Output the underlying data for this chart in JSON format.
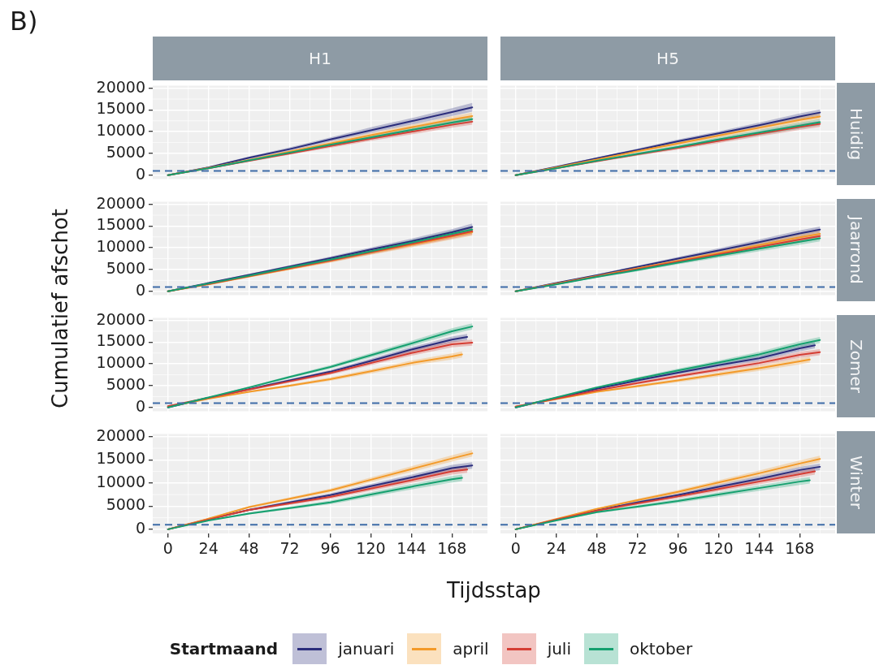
{
  "chart_data": [
    {
      "type": "line",
      "title": "H1",
      "ylabel": "Cumulatief afschot",
      "annotations": [
        "B)"
      ],
      "legend": "bottom",
      "legend_title": "Startmaand",
      "tick_labels": "y",
      "grid": true,
      "xlim": [
        -9,
        189
      ],
      "xticks": [
        0,
        24,
        48,
        72,
        96,
        120,
        144,
        168
      ],
      "ylim": [
        -900,
        20600
      ],
      "yticks": [
        0,
        5000,
        10000,
        15000,
        20000
      ],
      "ref_lines": [
        {
          "axis": "y",
          "value": 1000,
          "color": "#3e6ca8",
          "line_style": "dashed"
        }
      ],
      "x": [
        0,
        24,
        48,
        72,
        96,
        120,
        144,
        168,
        180
      ],
      "series": [
        {
          "name": "januari",
          "color": "#2b2d7c",
          "values": [
            0,
            1800,
            4000,
            6000,
            8200,
            10300,
            12400,
            14500,
            15600
          ],
          "lower": [
            0,
            1600,
            3700,
            5600,
            7700,
            9700,
            11600,
            13600,
            14600
          ],
          "upper": [
            0,
            2000,
            4300,
            6400,
            8700,
            11000,
            13100,
            15400,
            16600
          ]
        },
        {
          "name": "april",
          "color": "#f39a29",
          "values": [
            0,
            1700,
            3500,
            5400,
            7300,
            9200,
            11000,
            12800,
            13600
          ],
          "lower": [
            0,
            1600,
            3300,
            5100,
            6900,
            8700,
            10400,
            12100,
            12900
          ],
          "upper": [
            0,
            1800,
            3700,
            5700,
            7700,
            9700,
            11600,
            13500,
            14400
          ]
        },
        {
          "name": "juli",
          "color": "#d53e34",
          "values": [
            0,
            1600,
            3300,
            5000,
            6700,
            8400,
            10000,
            11600,
            12300
          ],
          "lower": [
            0,
            1500,
            3100,
            4700,
            6300,
            7900,
            9400,
            10900,
            11600
          ],
          "upper": [
            0,
            1700,
            3500,
            5300,
            7100,
            8900,
            10600,
            12300,
            13000
          ]
        },
        {
          "name": "oktober",
          "color": "#15a06f",
          "values": [
            0,
            1600,
            3400,
            5200,
            7000,
            8700,
            10400,
            12100,
            12900
          ],
          "lower": [
            0,
            1500,
            3200,
            4900,
            6600,
            8200,
            9800,
            11400,
            12200
          ],
          "upper": [
            0,
            1700,
            3600,
            5500,
            7400,
            9200,
            11000,
            12800,
            13600
          ]
        }
      ]
    },
    {
      "type": "line",
      "title": "H5",
      "y2label": "Huidig",
      "tick_labels": false,
      "grid": true,
      "xlim": [
        -9,
        189
      ],
      "xticks": [
        0,
        24,
        48,
        72,
        96,
        120,
        144,
        168
      ],
      "ylim": [
        -900,
        20600
      ],
      "yticks": [
        0,
        5000,
        10000,
        15000,
        20000
      ],
      "ref_lines": [
        {
          "axis": "y",
          "value": 1000,
          "color": "#3e6ca8",
          "line_style": "dashed"
        }
      ],
      "x": [
        0,
        24,
        48,
        72,
        96,
        120,
        144,
        168,
        180
      ],
      "series": [
        {
          "color": "#2b2d7c",
          "values": [
            0,
            1900,
            3900,
            5800,
            7800,
            9600,
            11500,
            13500,
            14400
          ],
          "lower": [
            0,
            1800,
            3700,
            5500,
            7400,
            9100,
            10900,
            12800,
            13700
          ],
          "upper": [
            0,
            2000,
            4100,
            6100,
            8200,
            10100,
            12100,
            14200,
            15100
          ]
        },
        {
          "color": "#f39a29",
          "values": [
            0,
            1800,
            3600,
            5500,
            7300,
            9100,
            10900,
            12700,
            13500
          ],
          "lower": [
            0,
            1700,
            3400,
            5200,
            6900,
            8600,
            10300,
            12000,
            12800
          ],
          "upper": [
            0,
            1900,
            3800,
            5800,
            7700,
            9600,
            11500,
            13400,
            14200
          ]
        },
        {
          "color": "#d53e34",
          "values": [
            0,
            1600,
            3200,
            4800,
            6300,
            7900,
            9500,
            11100,
            11800
          ],
          "lower": [
            0,
            1500,
            3000,
            4500,
            5900,
            7400,
            8900,
            10400,
            11100
          ],
          "upper": [
            0,
            1700,
            3400,
            5100,
            6700,
            8400,
            10100,
            11800,
            12500
          ]
        },
        {
          "color": "#15a06f",
          "values": [
            0,
            1600,
            3300,
            4900,
            6500,
            8200,
            9800,
            11400,
            12200
          ],
          "lower": [
            0,
            1500,
            3100,
            4600,
            6100,
            7700,
            9200,
            10700,
            11500
          ],
          "upper": [
            0,
            1700,
            3500,
            5200,
            6900,
            8700,
            10400,
            12100,
            12900
          ]
        }
      ]
    },
    {
      "type": "line",
      "tick_labels": "y",
      "grid": true,
      "xlim": [
        -9,
        189
      ],
      "xticks": [
        0,
        24,
        48,
        72,
        96,
        120,
        144,
        168
      ],
      "ylim": [
        -900,
        20600
      ],
      "yticks": [
        0,
        5000,
        10000,
        15000,
        20000
      ],
      "ref_lines": [
        {
          "axis": "y",
          "value": 1000,
          "color": "#3e6ca8",
          "line_style": "dashed"
        }
      ],
      "x": [
        0,
        24,
        48,
        72,
        96,
        120,
        144,
        168,
        180
      ],
      "series": [
        {
          "color": "#2b2d7c",
          "values": [
            0,
            1900,
            3800,
            5700,
            7600,
            9600,
            11500,
            13600,
            14800
          ],
          "lower": [
            0,
            1800,
            3600,
            5400,
            7200,
            9100,
            10900,
            12900,
            14000
          ],
          "upper": [
            0,
            2000,
            4000,
            6000,
            8000,
            10100,
            12100,
            14300,
            15600
          ]
        },
        {
          "color": "#f39a29",
          "values": [
            0,
            1600,
            3400,
            5200,
            7000,
            8900,
            10700,
            12600,
            13600
          ],
          "lower": [
            0,
            1500,
            3200,
            4900,
            6600,
            8400,
            10100,
            11900,
            12800
          ],
          "upper": [
            0,
            1700,
            3600,
            5500,
            7400,
            9400,
            11300,
            13300,
            14400
          ]
        },
        {
          "color": "#d53e34",
          "values": [
            0,
            1700,
            3500,
            5300,
            7100,
            9000,
            10900,
            12800,
            13800
          ],
          "lower": [
            0,
            1600,
            3300,
            5000,
            6700,
            8500,
            10300,
            12100,
            13000
          ],
          "upper": [
            0,
            1800,
            3700,
            5600,
            7500,
            9500,
            11500,
            13500,
            14600
          ]
        },
        {
          "color": "#15a06f",
          "values": [
            0,
            1800,
            3600,
            5500,
            7300,
            9200,
            11200,
            13200,
            14200
          ],
          "lower": [
            0,
            1700,
            3400,
            5200,
            6900,
            8700,
            10600,
            12500,
            13400
          ],
          "upper": [
            0,
            1900,
            3800,
            5800,
            7700,
            9700,
            11800,
            13900,
            15000
          ]
        }
      ]
    },
    {
      "type": "line",
      "y2label": "Jaarrond",
      "tick_labels": false,
      "grid": true,
      "xlim": [
        -9,
        189
      ],
      "xticks": [
        0,
        24,
        48,
        72,
        96,
        120,
        144,
        168
      ],
      "ylim": [
        -900,
        20600
      ],
      "yticks": [
        0,
        5000,
        10000,
        15000,
        20000
      ],
      "ref_lines": [
        {
          "axis": "y",
          "value": 1000,
          "color": "#3e6ca8",
          "line_style": "dashed"
        }
      ],
      "x": [
        0,
        24,
        48,
        72,
        96,
        120,
        144,
        168,
        180
      ],
      "series": [
        {
          "color": "#2b2d7c",
          "values": [
            0,
            1900,
            3700,
            5600,
            7500,
            9400,
            11300,
            13300,
            14200
          ],
          "lower": [
            0,
            1800,
            3500,
            5300,
            7100,
            8900,
            10700,
            12600,
            13500
          ],
          "upper": [
            0,
            2000,
            3900,
            5900,
            7900,
            9900,
            11900,
            14000,
            14900
          ]
        },
        {
          "color": "#f39a29",
          "values": [
            0,
            1800,
            3500,
            5300,
            7000,
            8800,
            10600,
            12400,
            13200
          ],
          "lower": [
            0,
            1700,
            3300,
            5000,
            6600,
            8300,
            10000,
            11700,
            12500
          ],
          "upper": [
            0,
            1900,
            3700,
            5600,
            7400,
            9300,
            11200,
            13100,
            13900
          ]
        },
        {
          "color": "#d53e34",
          "values": [
            0,
            1700,
            3400,
            5100,
            6800,
            8500,
            10200,
            11900,
            12700
          ],
          "lower": [
            0,
            1600,
            3200,
            4800,
            6400,
            8000,
            9600,
            11200,
            12000
          ],
          "upper": [
            0,
            1800,
            3600,
            5400,
            7200,
            9000,
            10800,
            12600,
            13400
          ]
        },
        {
          "color": "#15a06f",
          "values": [
            0,
            1600,
            3300,
            4900,
            6600,
            8200,
            9800,
            11400,
            12200
          ],
          "lower": [
            0,
            1500,
            3100,
            4600,
            6200,
            7700,
            9200,
            10700,
            11500
          ],
          "upper": [
            0,
            1700,
            3500,
            5200,
            7000,
            8700,
            10400,
            12100,
            12900
          ]
        }
      ]
    },
    {
      "type": "line",
      "tick_labels": "y",
      "grid": true,
      "xlim": [
        -9,
        189
      ],
      "xticks": [
        0,
        24,
        48,
        72,
        96,
        120,
        144,
        168
      ],
      "ylim": [
        -900,
        20600
      ],
      "yticks": [
        0,
        5000,
        10000,
        15000,
        20000
      ],
      "ref_lines": [
        {
          "axis": "y",
          "value": 1000,
          "color": "#3e6ca8",
          "line_style": "dashed"
        }
      ],
      "x": [
        0,
        24,
        48,
        72,
        96,
        120,
        144,
        168,
        180
      ],
      "series": [
        {
          "color": "#2b2d7c",
          "x": [
            0,
            24,
            48,
            72,
            96,
            120,
            144,
            168,
            177
          ],
          "values": [
            0,
            2200,
            4200,
            6200,
            8200,
            10700,
            13300,
            15600,
            16200
          ],
          "lower": [
            0,
            2100,
            4000,
            5900,
            7800,
            10200,
            12700,
            14900,
            15500
          ],
          "upper": [
            0,
            2300,
            4400,
            6500,
            8600,
            11200,
            13900,
            16300,
            16900
          ]
        },
        {
          "color": "#f39a29",
          "x": [
            0,
            24,
            48,
            72,
            96,
            120,
            144,
            168,
            174
          ],
          "values": [
            200,
            2000,
            3600,
            5000,
            6500,
            8300,
            10200,
            11700,
            12200
          ],
          "lower": [
            200,
            1900,
            3400,
            4700,
            6100,
            7800,
            9600,
            11000,
            11500
          ],
          "upper": [
            200,
            2100,
            3800,
            5300,
            6900,
            8800,
            10800,
            12400,
            12900
          ]
        },
        {
          "color": "#d53e34",
          "values": [
            300,
            2200,
            4100,
            6000,
            7900,
            10200,
            12500,
            14500,
            14900
          ],
          "lower": [
            300,
            2100,
            3900,
            5700,
            7500,
            9700,
            11900,
            13800,
            14200
          ],
          "upper": [
            300,
            2300,
            4300,
            6300,
            8300,
            10700,
            13100,
            15200,
            15600
          ]
        },
        {
          "color": "#15a06f",
          "values": [
            0,
            2300,
            4600,
            7000,
            9300,
            12000,
            14700,
            17500,
            18600
          ],
          "lower": [
            0,
            2200,
            4400,
            6700,
            8900,
            11500,
            14100,
            16800,
            17900
          ],
          "upper": [
            0,
            2400,
            4800,
            7300,
            9700,
            12500,
            15300,
            18200,
            19300
          ]
        }
      ]
    },
    {
      "type": "line",
      "y2label": "Zomer",
      "tick_labels": false,
      "grid": true,
      "xlim": [
        -9,
        189
      ],
      "xticks": [
        0,
        24,
        48,
        72,
        96,
        120,
        144,
        168
      ],
      "ylim": [
        -900,
        20600
      ],
      "yticks": [
        0,
        5000,
        10000,
        15000,
        20000
      ],
      "ref_lines": [
        {
          "axis": "y",
          "value": 1000,
          "color": "#3e6ca8",
          "line_style": "dashed"
        }
      ],
      "x": [
        0,
        24,
        48,
        72,
        96,
        120,
        144,
        168,
        180
      ],
      "series": [
        {
          "color": "#2b2d7c",
          "x": [
            0,
            24,
            48,
            72,
            96,
            120,
            144,
            168,
            177
          ],
          "values": [
            0,
            2200,
            4300,
            6200,
            8000,
            9700,
            11300,
            13600,
            14300
          ],
          "lower": [
            0,
            2100,
            4100,
            5900,
            7600,
            9200,
            10700,
            12900,
            13600
          ],
          "upper": [
            0,
            2300,
            4500,
            6500,
            8400,
            10200,
            11900,
            14300,
            15000
          ]
        },
        {
          "color": "#f39a29",
          "x": [
            0,
            24,
            48,
            72,
            96,
            120,
            144,
            168,
            174
          ],
          "values": [
            200,
            1900,
            3600,
            4900,
            6200,
            7600,
            9000,
            10600,
            11000
          ],
          "lower": [
            200,
            1800,
            3400,
            4600,
            5800,
            7100,
            8400,
            9900,
            10300
          ],
          "upper": [
            200,
            2000,
            3800,
            5200,
            6600,
            8100,
            9600,
            11300,
            11700
          ]
        },
        {
          "color": "#d53e34",
          "values": [
            200,
            2000,
            3900,
            5600,
            7200,
            8700,
            10200,
            12100,
            12700
          ],
          "lower": [
            200,
            1900,
            3700,
            5300,
            6800,
            8200,
            9600,
            11400,
            12000
          ],
          "upper": [
            200,
            2100,
            4100,
            5900,
            7600,
            9200,
            10800,
            12800,
            13400
          ]
        },
        {
          "color": "#15a06f",
          "values": [
            0,
            2300,
            4600,
            6600,
            8500,
            10300,
            12200,
            14500,
            15500
          ],
          "lower": [
            0,
            2200,
            4400,
            6300,
            8100,
            9800,
            11600,
            13800,
            14800
          ],
          "upper": [
            0,
            2400,
            4800,
            6900,
            8900,
            10800,
            12800,
            15200,
            16200
          ]
        }
      ]
    },
    {
      "type": "line",
      "xlabel": "Tijdsstap",
      "grid": true,
      "xlim": [
        -9,
        189
      ],
      "xticks": [
        0,
        24,
        48,
        72,
        96,
        120,
        144,
        168
      ],
      "ylim": [
        -900,
        20600
      ],
      "yticks": [
        0,
        5000,
        10000,
        15000,
        20000
      ],
      "ref_lines": [
        {
          "axis": "y",
          "value": 1000,
          "color": "#3e6ca8",
          "line_style": "dashed"
        }
      ],
      "x": [
        0,
        24,
        48,
        72,
        96,
        120,
        144,
        168,
        180
      ],
      "series": [
        {
          "color": "#2b2d7c",
          "values": [
            0,
            2200,
            4200,
            5800,
            7400,
            9300,
            11200,
            13200,
            13800
          ],
          "lower": [
            0,
            2100,
            4000,
            5500,
            7000,
            8800,
            10600,
            12500,
            13100
          ],
          "upper": [
            0,
            2300,
            4400,
            6100,
            7800,
            9800,
            11800,
            13900,
            14500
          ]
        },
        {
          "color": "#f39a29",
          "values": [
            0,
            2300,
            4800,
            6600,
            8400,
            10700,
            13000,
            15300,
            16400
          ],
          "lower": [
            0,
            2200,
            4600,
            6300,
            8000,
            10200,
            12400,
            14600,
            15700
          ],
          "upper": [
            0,
            2400,
            5000,
            6900,
            8800,
            11200,
            13600,
            16000,
            17100
          ]
        },
        {
          "color": "#d53e34",
          "x": [
            0,
            24,
            48,
            72,
            96,
            120,
            144,
            168,
            177
          ],
          "values": [
            0,
            2100,
            4200,
            5600,
            7000,
            8800,
            10600,
            12500,
            12900
          ],
          "lower": [
            0,
            2000,
            4000,
            5300,
            6600,
            8300,
            10000,
            11800,
            12200
          ],
          "upper": [
            0,
            2200,
            4400,
            5900,
            7400,
            9300,
            11200,
            13200,
            13600
          ]
        },
        {
          "color": "#15a06f",
          "x": [
            0,
            24,
            48,
            72,
            96,
            120,
            144,
            168,
            174
          ],
          "values": [
            0,
            1900,
            3400,
            4600,
            5800,
            7500,
            9200,
            10800,
            11100
          ],
          "lower": [
            0,
            1800,
            3200,
            4300,
            5400,
            7000,
            8600,
            10100,
            10400
          ],
          "upper": [
            0,
            2000,
            3600,
            4900,
            6200,
            8000,
            9800,
            11500,
            11800
          ]
        }
      ]
    },
    {
      "type": "line",
      "y2label": "Winter",
      "tick_labels": "x",
      "grid": true,
      "xlim": [
        -9,
        189
      ],
      "xticks": [
        0,
        24,
        48,
        72,
        96,
        120,
        144,
        168
      ],
      "ylim": [
        -900,
        20600
      ],
      "yticks": [
        0,
        5000,
        10000,
        15000,
        20000
      ],
      "ref_lines": [
        {
          "axis": "y",
          "value": 1000,
          "color": "#3e6ca8",
          "line_style": "dashed"
        }
      ],
      "x": [
        0,
        24,
        48,
        72,
        96,
        120,
        144,
        168,
        180
      ],
      "series": [
        {
          "color": "#2b2d7c",
          "values": [
            0,
            2100,
            4100,
            5800,
            7400,
            9200,
            10900,
            12800,
            13500
          ],
          "lower": [
            0,
            2000,
            3900,
            5500,
            7000,
            8700,
            10300,
            12100,
            12800
          ],
          "upper": [
            0,
            2200,
            4300,
            6100,
            7800,
            9700,
            11500,
            13500,
            14200
          ]
        },
        {
          "color": "#f39a29",
          "values": [
            0,
            2200,
            4400,
            6300,
            8100,
            10100,
            12100,
            14200,
            15200
          ],
          "lower": [
            0,
            2100,
            4200,
            6000,
            7700,
            9600,
            11500,
            13500,
            14500
          ],
          "upper": [
            0,
            2300,
            4600,
            6600,
            8500,
            10600,
            12700,
            14900,
            15900
          ]
        },
        {
          "color": "#d53e34",
          "x": [
            0,
            24,
            48,
            72,
            96,
            120,
            144,
            168,
            177
          ],
          "values": [
            0,
            2100,
            4000,
            5600,
            7100,
            8700,
            10300,
            11900,
            12500
          ],
          "lower": [
            0,
            2000,
            3800,
            5300,
            6700,
            8200,
            9700,
            11200,
            11800
          ],
          "upper": [
            0,
            2200,
            4200,
            5900,
            7500,
            9200,
            10900,
            12600,
            13200
          ]
        },
        {
          "color": "#15a06f",
          "x": [
            0,
            24,
            48,
            72,
            96,
            120,
            144,
            168,
            174
          ],
          "values": [
            0,
            1900,
            3700,
            4900,
            6100,
            7500,
            8900,
            10300,
            10600
          ],
          "lower": [
            0,
            1800,
            3500,
            4600,
            5700,
            7000,
            8300,
            9600,
            9900
          ],
          "upper": [
            0,
            2000,
            3900,
            5200,
            6500,
            8000,
            9500,
            11000,
            11300
          ]
        }
      ]
    }
  ]
}
